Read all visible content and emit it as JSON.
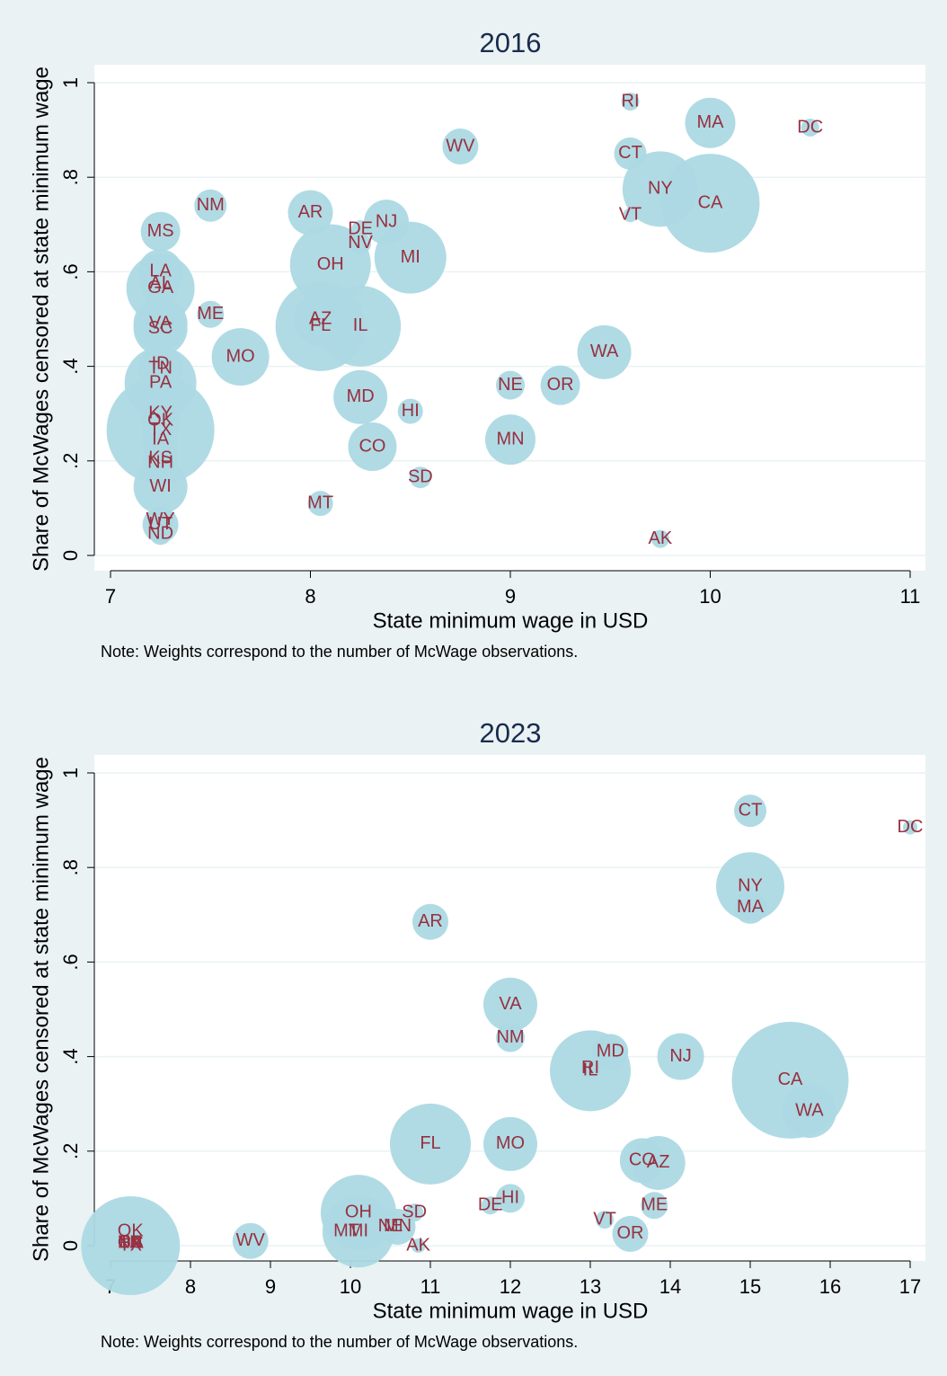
{
  "chart_data": [
    {
      "type": "bubble",
      "title": "2016",
      "x_label": "State minimum wage in USD",
      "y_label": "Share of McWages censored at state minimum wage",
      "note": "Note: Weights correspond to the number of McWage observations.",
      "grid": true,
      "color": "#acd9e3",
      "label_color": "#983040",
      "xlim": [
        7,
        11
      ],
      "xticks": [
        7,
        8,
        9,
        10,
        11
      ],
      "ylim": [
        0,
        1
      ],
      "yticks": [
        0,
        {
          "value": 0.2,
          "label": ".2"
        },
        {
          "value": 0.4,
          "label": ".4"
        },
        {
          "value": 0.6,
          "label": ".6"
        },
        {
          "value": 0.8,
          "label": ".8"
        },
        1
      ],
      "labels": [
        "RI",
        "MA",
        "DC",
        "WV",
        "CT",
        "NY",
        "CA",
        "VT",
        "NM",
        "AR",
        "NJ",
        "DE",
        "NV",
        "MS",
        "OH",
        "MI",
        "LA",
        "AL",
        "GA",
        "ME",
        "AZ",
        "FL",
        "IL",
        "VA",
        "SC",
        "MO",
        "WA",
        "ID",
        "TN",
        "PA",
        "NE",
        "OR",
        "MD",
        "HI",
        "KY",
        "OK",
        "TX",
        "IA",
        "CO",
        "MN",
        "KS",
        "NH",
        "SD",
        "WI",
        "MT",
        "WY",
        "UT",
        "ND",
        "AK"
      ],
      "x": [
        9.6,
        10.0,
        10.5,
        8.75,
        9.6,
        9.75,
        10.0,
        9.6,
        7.5,
        8.0,
        8.38,
        8.25,
        8.25,
        7.25,
        8.1,
        8.5,
        7.25,
        7.25,
        7.25,
        7.5,
        8.05,
        8.05,
        8.25,
        7.25,
        7.25,
        7.65,
        9.47,
        7.25,
        7.25,
        7.25,
        9.0,
        9.25,
        8.25,
        8.5,
        7.25,
        7.25,
        7.25,
        7.25,
        8.31,
        9.0,
        7.25,
        7.25,
        8.55,
        7.25,
        8.05,
        7.25,
        7.25,
        7.25,
        9.75
      ],
      "values": [
        0.96,
        0.915,
        0.905,
        0.865,
        0.85,
        0.775,
        0.745,
        0.72,
        0.74,
        0.725,
        0.705,
        0.69,
        0.66,
        0.685,
        0.615,
        0.63,
        0.6,
        0.575,
        0.565,
        0.51,
        0.5,
        0.485,
        0.485,
        0.49,
        0.48,
        0.42,
        0.43,
        0.405,
        0.395,
        0.365,
        0.36,
        0.36,
        0.335,
        0.305,
        0.3,
        0.285,
        0.265,
        0.245,
        0.23,
        0.245,
        0.205,
        0.195,
        0.165,
        0.145,
        0.11,
        0.075,
        0.065,
        0.045,
        0.035
      ],
      "sizes": [
        100,
        784,
        100,
        400,
        324,
        1764,
        3025,
        64,
        324,
        625,
        625,
        100,
        144,
        484,
        2025,
        1600,
        625,
        484,
        1444,
        225,
        900,
        2500,
        2025,
        900,
        900,
        1024,
        900,
        144,
        625,
        1600,
        256,
        484,
        900,
        196,
        400,
        484,
        3600,
        400,
        729,
        784,
        400,
        324,
        144,
        900,
        196,
        225,
        400,
        144,
        100
      ]
    },
    {
      "type": "bubble",
      "title": "2023",
      "x_label": "State minimum wage in USD",
      "y_label": "Share of McWages censored at state minimum wage",
      "note": "Note: Weights correspond to the number of McWage observations.",
      "grid": true,
      "color": "#acd9e3",
      "label_color": "#983040",
      "xlim": [
        7,
        17
      ],
      "xticks": [
        7,
        8,
        9,
        10,
        11,
        12,
        13,
        14,
        15,
        16,
        17
      ],
      "ylim": [
        0,
        1
      ],
      "yticks": [
        0,
        {
          "value": 0.2,
          "label": ".2"
        },
        {
          "value": 0.4,
          "label": ".4"
        },
        {
          "value": 0.6,
          "label": ".6"
        },
        {
          "value": 0.8,
          "label": ".8"
        },
        1
      ],
      "labels": [
        "CT",
        "DC",
        "NY",
        "MA",
        "AR",
        "VA",
        "NM",
        "MD",
        "NJ",
        "RI",
        "IL",
        "CA",
        "WA",
        "FL",
        "MO",
        "CO",
        "AZ",
        "HI",
        "DE",
        "ME",
        "OH",
        "SD",
        "VT",
        "MN",
        "NE",
        "MI",
        "MT",
        "WV",
        "AK",
        "OR",
        "TX",
        "OK",
        "GA",
        "PA",
        "NC",
        "TN"
      ],
      "x": [
        15,
        17,
        15,
        15,
        11,
        12,
        12,
        13.25,
        14.13,
        13,
        13,
        15.5,
        15.74,
        11,
        12,
        13.65,
        13.85,
        12,
        11.75,
        13.8,
        10.1,
        10.8,
        13.18,
        10.59,
        10.5,
        10.1,
        9.95,
        8.75,
        10.85,
        13.5,
        7.25,
        7.25,
        7.25,
        7.25,
        7.25,
        7.25
      ],
      "values": [
        0.92,
        0.885,
        0.76,
        0.715,
        0.685,
        0.51,
        0.44,
        0.41,
        0.4,
        0.375,
        0.37,
        0.35,
        0.285,
        0.215,
        0.215,
        0.18,
        0.175,
        0.1,
        0.085,
        0.085,
        0.07,
        0.07,
        0.055,
        0.04,
        0.04,
        0.03,
        0.03,
        0.01,
        0.0,
        0.025,
        0.0,
        0.03,
        0.005,
        0.005,
        0.005,
        0.005
      ],
      "sizes": [
        324,
        64,
        1444,
        324,
        400,
        900,
        256,
        400,
        676,
        144,
        2025,
        4225,
        900,
        2025,
        900,
        625,
        900,
        256,
        100,
        225,
        1764,
        100,
        100,
        400,
        225,
        1600,
        144,
        400,
        64,
        400,
        3025,
        100,
        144,
        144,
        100,
        100
      ]
    }
  ]
}
